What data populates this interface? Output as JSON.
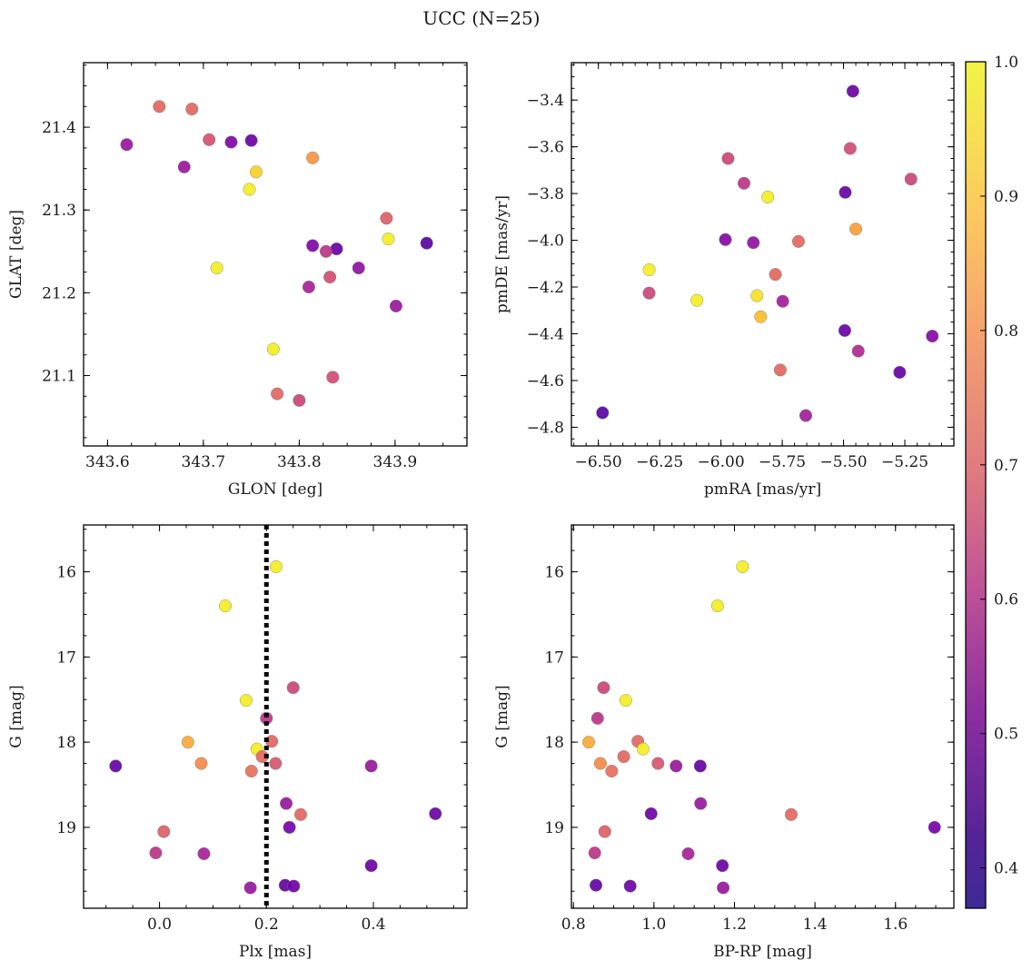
{
  "figure": {
    "title": "UCC (N=25)"
  },
  "colorbar": {
    "colormap": "plasma",
    "min": 0.37,
    "max": 1.0,
    "ticks": [
      0.4,
      0.5,
      0.6,
      0.7,
      0.8,
      0.9,
      1.0
    ],
    "tick_labels": [
      "0.4",
      "0.5",
      "0.6",
      "0.7",
      "0.8",
      "0.9",
      "1.0"
    ]
  },
  "chart_data": [
    {
      "type": "scatter",
      "xlabel": "GLON [deg]",
      "ylabel": "GLAT [deg]",
      "xlim": [
        343.575,
        343.975
      ],
      "ylim": [
        21.015,
        21.478
      ],
      "x_inverted": false,
      "y_inverted": false,
      "xticks": [
        343.6,
        343.7,
        343.8,
        343.9
      ],
      "xtick_labels": [
        "343.6",
        "343.7",
        "343.8",
        "343.9"
      ],
      "xminor": 0.025,
      "yticks": [
        21.1,
        21.2,
        21.3,
        21.4
      ],
      "ytick_labels": [
        "21.1",
        "21.2",
        "21.3",
        "21.4"
      ],
      "yminor": 0.025,
      "points": [
        {
          "x": 343.654,
          "y": 21.425,
          "c": 0.72
        },
        {
          "x": 343.688,
          "y": 21.422,
          "c": 0.72
        },
        {
          "x": 343.706,
          "y": 21.385,
          "c": 0.67
        },
        {
          "x": 343.729,
          "y": 21.382,
          "c": 0.47
        },
        {
          "x": 343.75,
          "y": 21.384,
          "c": 0.43
        },
        {
          "x": 343.62,
          "y": 21.379,
          "c": 0.52
        },
        {
          "x": 343.68,
          "y": 21.352,
          "c": 0.52
        },
        {
          "x": 343.755,
          "y": 21.346,
          "c": 0.93
        },
        {
          "x": 343.748,
          "y": 21.325,
          "c": 0.98
        },
        {
          "x": 343.814,
          "y": 21.363,
          "c": 0.82
        },
        {
          "x": 343.714,
          "y": 21.23,
          "c": 0.98
        },
        {
          "x": 343.891,
          "y": 21.29,
          "c": 0.7
        },
        {
          "x": 343.893,
          "y": 21.265,
          "c": 0.98
        },
        {
          "x": 343.933,
          "y": 21.26,
          "c": 0.4
        },
        {
          "x": 343.814,
          "y": 21.257,
          "c": 0.47
        },
        {
          "x": 343.839,
          "y": 21.253,
          "c": 0.42
        },
        {
          "x": 343.828,
          "y": 21.25,
          "c": 0.6
        },
        {
          "x": 343.862,
          "y": 21.23,
          "c": 0.5
        },
        {
          "x": 343.832,
          "y": 21.219,
          "c": 0.66
        },
        {
          "x": 343.81,
          "y": 21.207,
          "c": 0.55
        },
        {
          "x": 343.901,
          "y": 21.184,
          "c": 0.52
        },
        {
          "x": 343.773,
          "y": 21.132,
          "c": 0.98
        },
        {
          "x": 343.835,
          "y": 21.098,
          "c": 0.66
        },
        {
          "x": 343.777,
          "y": 21.078,
          "c": 0.72
        },
        {
          "x": 343.8,
          "y": 21.07,
          "c": 0.64
        }
      ]
    },
    {
      "type": "scatter",
      "xlabel": "pmRA [mas/yr]",
      "ylabel": "pmDE [mas/yr]",
      "xlim": [
        -6.61,
        -5.05
      ],
      "ylim": [
        -4.88,
        -3.24
      ],
      "x_inverted": false,
      "y_inverted": false,
      "xticks": [
        -6.5,
        -6.25,
        -6.0,
        -5.75,
        -5.5,
        -5.25
      ],
      "xtick_labels": [
        "−6.50",
        "−6.25",
        "−6.00",
        "−5.75",
        "−5.50",
        "−5.25"
      ],
      "xminor": 0.05,
      "yticks": [
        -4.8,
        -4.6,
        -4.4,
        -4.2,
        -4.0,
        -3.8,
        -3.6,
        -3.4
      ],
      "ytick_labels": [
        "−4.8",
        "−4.6",
        "−4.4",
        "−4.2",
        "−4.0",
        "−3.8",
        "−3.6",
        "−3.4"
      ],
      "yminor": 0.05,
      "points": [
        {
          "x": -5.462,
          "y": -3.362,
          "c": 0.43
        },
        {
          "x": -5.473,
          "y": -3.607,
          "c": 0.66
        },
        {
          "x": -5.971,
          "y": -3.65,
          "c": 0.64
        },
        {
          "x": -5.906,
          "y": -3.756,
          "c": 0.6
        },
        {
          "x": -5.809,
          "y": -3.815,
          "c": 0.98
        },
        {
          "x": -5.225,
          "y": -3.738,
          "c": 0.64
        },
        {
          "x": -5.493,
          "y": -3.795,
          "c": 0.42
        },
        {
          "x": -5.982,
          "y": -3.997,
          "c": 0.48
        },
        {
          "x": -5.868,
          "y": -4.01,
          "c": 0.5
        },
        {
          "x": -5.684,
          "y": -4.005,
          "c": 0.72
        },
        {
          "x": -5.45,
          "y": -3.952,
          "c": 0.84
        },
        {
          "x": -6.293,
          "y": -4.126,
          "c": 0.98
        },
        {
          "x": -6.293,
          "y": -4.226,
          "c": 0.64
        },
        {
          "x": -5.778,
          "y": -4.146,
          "c": 0.72
        },
        {
          "x": -6.098,
          "y": -4.257,
          "c": 0.98
        },
        {
          "x": -5.853,
          "y": -4.237,
          "c": 0.96
        },
        {
          "x": -5.748,
          "y": -4.261,
          "c": 0.54
        },
        {
          "x": -5.838,
          "y": -4.327,
          "c": 0.9
        },
        {
          "x": -5.495,
          "y": -4.386,
          "c": 0.43
        },
        {
          "x": -5.44,
          "y": -4.474,
          "c": 0.57
        },
        {
          "x": -5.138,
          "y": -4.41,
          "c": 0.48
        },
        {
          "x": -5.271,
          "y": -4.565,
          "c": 0.42
        },
        {
          "x": -5.758,
          "y": -4.555,
          "c": 0.72
        },
        {
          "x": -6.483,
          "y": -4.738,
          "c": 0.4
        },
        {
          "x": -5.654,
          "y": -4.75,
          "c": 0.54
        }
      ]
    },
    {
      "type": "scatter",
      "xlabel": "Plx [mas]",
      "ylabel": "G [mag]",
      "xlim": [
        -0.142,
        0.575
      ],
      "ylim": [
        19.95,
        15.45
      ],
      "x_inverted": false,
      "y_inverted": true,
      "xticks": [
        0.0,
        0.2,
        0.4
      ],
      "xtick_labels": [
        "0.0",
        "0.2",
        "0.4"
      ],
      "xminor": 0.05,
      "yticks": [
        16,
        17,
        18,
        19
      ],
      "ytick_labels": [
        "16",
        "17",
        "18",
        "19"
      ],
      "yminor": 0.25,
      "reference_line": {
        "x": 0.2,
        "style": "dotted"
      },
      "points": [
        {
          "x": 0.218,
          "y": 15.94,
          "c": 0.98
        },
        {
          "x": 0.123,
          "y": 16.4,
          "c": 0.98
        },
        {
          "x": 0.25,
          "y": 17.36,
          "c": 0.64
        },
        {
          "x": 0.162,
          "y": 17.51,
          "c": 0.98
        },
        {
          "x": 0.2,
          "y": 17.72,
          "c": 0.6
        },
        {
          "x": 0.053,
          "y": 18.0,
          "c": 0.86
        },
        {
          "x": 0.21,
          "y": 17.99,
          "c": 0.72
        },
        {
          "x": 0.182,
          "y": 18.08,
          "c": 0.98
        },
        {
          "x": 0.192,
          "y": 18.17,
          "c": 0.72
        },
        {
          "x": 0.078,
          "y": 18.25,
          "c": 0.8
        },
        {
          "x": 0.217,
          "y": 18.25,
          "c": 0.68
        },
        {
          "x": -0.082,
          "y": 18.28,
          "c": 0.42
        },
        {
          "x": 0.396,
          "y": 18.28,
          "c": 0.52
        },
        {
          "x": 0.172,
          "y": 18.34,
          "c": 0.74
        },
        {
          "x": 0.237,
          "y": 18.72,
          "c": 0.52
        },
        {
          "x": 0.264,
          "y": 18.85,
          "c": 0.72
        },
        {
          "x": 0.516,
          "y": 18.84,
          "c": 0.43
        },
        {
          "x": 0.243,
          "y": 19.0,
          "c": 0.45
        },
        {
          "x": 0.008,
          "y": 19.05,
          "c": 0.7
        },
        {
          "x": -0.007,
          "y": 19.3,
          "c": 0.6
        },
        {
          "x": 0.083,
          "y": 19.31,
          "c": 0.55
        },
        {
          "x": 0.396,
          "y": 19.45,
          "c": 0.43
        },
        {
          "x": 0.17,
          "y": 19.71,
          "c": 0.52
        },
        {
          "x": 0.235,
          "y": 19.68,
          "c": 0.42
        },
        {
          "x": 0.251,
          "y": 19.69,
          "c": 0.43
        }
      ]
    },
    {
      "type": "scatter",
      "xlabel": "BP-RP [mag]",
      "ylabel": "G [mag]",
      "xlim": [
        0.795,
        1.745
      ],
      "ylim": [
        19.95,
        15.45
      ],
      "x_inverted": false,
      "y_inverted": true,
      "xticks": [
        0.8,
        1.0,
        1.2,
        1.4,
        1.6
      ],
      "xtick_labels": [
        "0.8",
        "1.0",
        "1.2",
        "1.4",
        "1.6"
      ],
      "xminor": 0.05,
      "yticks": [
        16,
        17,
        18,
        19
      ],
      "ytick_labels": [
        "16",
        "17",
        "18",
        "19"
      ],
      "yminor": 0.25,
      "points": [
        {
          "x": 1.22,
          "y": 15.94,
          "c": 0.98
        },
        {
          "x": 1.158,
          "y": 16.4,
          "c": 0.98
        },
        {
          "x": 0.875,
          "y": 17.36,
          "c": 0.64
        },
        {
          "x": 0.93,
          "y": 17.51,
          "c": 0.98
        },
        {
          "x": 0.86,
          "y": 17.72,
          "c": 0.6
        },
        {
          "x": 0.838,
          "y": 18.0,
          "c": 0.86
        },
        {
          "x": 0.96,
          "y": 17.99,
          "c": 0.72
        },
        {
          "x": 0.973,
          "y": 18.08,
          "c": 0.98
        },
        {
          "x": 0.925,
          "y": 18.17,
          "c": 0.72
        },
        {
          "x": 0.867,
          "y": 18.25,
          "c": 0.8
        },
        {
          "x": 1.01,
          "y": 18.25,
          "c": 0.68
        },
        {
          "x": 1.055,
          "y": 18.28,
          "c": 0.52
        },
        {
          "x": 1.115,
          "y": 18.28,
          "c": 0.42
        },
        {
          "x": 0.895,
          "y": 18.34,
          "c": 0.74
        },
        {
          "x": 1.116,
          "y": 18.72,
          "c": 0.52
        },
        {
          "x": 1.341,
          "y": 18.85,
          "c": 0.72
        },
        {
          "x": 0.993,
          "y": 18.84,
          "c": 0.43
        },
        {
          "x": 1.697,
          "y": 19.0,
          "c": 0.45
        },
        {
          "x": 0.878,
          "y": 19.05,
          "c": 0.7
        },
        {
          "x": 0.853,
          "y": 19.3,
          "c": 0.6
        },
        {
          "x": 1.085,
          "y": 19.31,
          "c": 0.55
        },
        {
          "x": 1.17,
          "y": 19.45,
          "c": 0.43
        },
        {
          "x": 1.172,
          "y": 19.71,
          "c": 0.52
        },
        {
          "x": 0.856,
          "y": 19.68,
          "c": 0.42
        },
        {
          "x": 0.941,
          "y": 19.69,
          "c": 0.43
        }
      ]
    }
  ]
}
